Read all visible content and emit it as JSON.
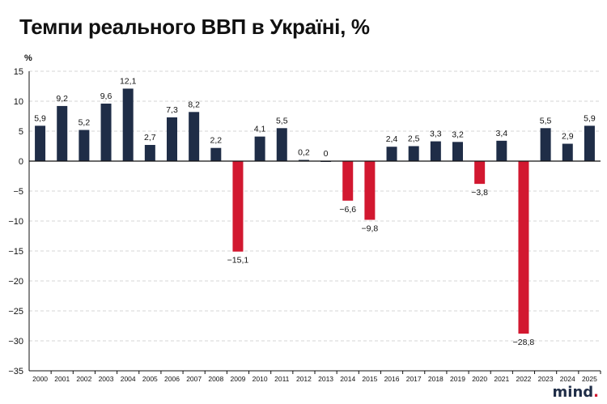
{
  "title": "Темпи реального ВВП в Україні, %",
  "unit_label": "%",
  "brand": {
    "text": "mind"
  },
  "colors": {
    "positive": "#1f2d47",
    "negative": "#d21830",
    "grid": "#d6d6d6",
    "axis": "#111111"
  },
  "chart_data": {
    "type": "bar",
    "title": "Темпи реального ВВП в Україні, %",
    "xlabel": "",
    "ylabel": "%",
    "ylim": [
      -35,
      15
    ],
    "yticks": [
      15,
      10,
      5,
      0,
      -5,
      -10,
      -15,
      -20,
      -25,
      -30,
      -35
    ],
    "grid": true,
    "categories": [
      "2000",
      "2001",
      "2002",
      "2003",
      "2004",
      "2005",
      "2006",
      "2007",
      "2008",
      "2009",
      "2010",
      "2011",
      "2012",
      "2013",
      "2014",
      "2015",
      "2016",
      "2017",
      "2018",
      "2019",
      "2020",
      "2021",
      "2022",
      "2023",
      "2024",
      "2025"
    ],
    "values": [
      5.9,
      9.2,
      5.2,
      9.6,
      12.1,
      2.7,
      7.3,
      8.2,
      2.2,
      -15.1,
      4.1,
      5.5,
      0.2,
      0,
      -6.6,
      -9.8,
      2.4,
      2.5,
      3.3,
      3.2,
      -3.8,
      3.4,
      -28.8,
      5.5,
      2.9,
      5.9
    ],
    "value_labels": [
      "5,9",
      "9,2",
      "5,2",
      "9,6",
      "12,1",
      "2,7",
      "7,3",
      "8,2",
      "2,2",
      "−15,1",
      "4,1",
      "5,5",
      "0,2",
      "0",
      "−6,6",
      "−9,8",
      "2,4",
      "2,5",
      "3,3",
      "3,2",
      "−3,8",
      "3,4",
      "−28,8",
      "5,5",
      "2,9",
      "5,9"
    ],
    "ytick_labels": [
      "15",
      "10",
      "5",
      "0",
      "−5",
      "−10",
      "−15",
      "−20",
      "−25",
      "−30",
      "−35"
    ]
  }
}
